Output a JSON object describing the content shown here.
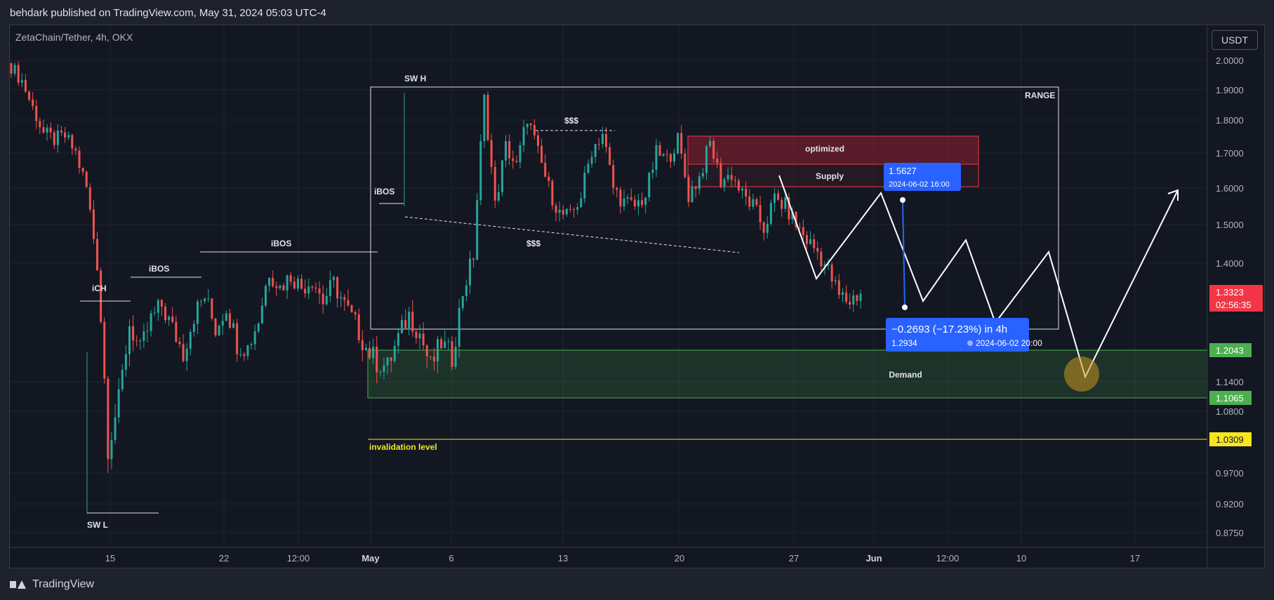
{
  "header": {
    "published": "behdark published on TradingView.com, May 31, 2024 05:03 UTC-4"
  },
  "chart_meta": {
    "symbol": "ZetaChain/Tether, 4h, OKX",
    "currency_button": "USDT"
  },
  "footer": {
    "brand": "TradingView"
  },
  "chart_data": {
    "type": "candlestick",
    "ylim": [
      0.82,
      2.05
    ],
    "y_ticks": [
      "2.0000",
      "1.9000",
      "1.8000",
      "1.7000",
      "1.6000",
      "1.5000",
      "1.4000",
      "1.1400",
      "1.0800",
      "0.9700",
      "0.9200",
      "0.8750"
    ],
    "x_ticks": [
      "15",
      "22",
      "12:00",
      "May",
      "6",
      "13",
      "20",
      "27",
      "Jun",
      "12:00",
      "10",
      "17"
    ],
    "price_labels": [
      {
        "value": "1.3323",
        "sub": "02:56:35",
        "color": "#f23645"
      },
      {
        "value": "1.2043",
        "color": "#4caf50"
      },
      {
        "value": "1.1065",
        "color": "#4caf50"
      },
      {
        "value": "1.0309",
        "color": "#f5e61e"
      }
    ],
    "annotations": {
      "sw_h": "SW H",
      "sw_l": "SW L",
      "ich": "iCH",
      "ibos": "iBOS",
      "liq": "$$$",
      "range": "RANGE",
      "optimized": "optimized",
      "supply": "Supply",
      "demand": "Demand",
      "invalidation": "invalidation level"
    },
    "measure": {
      "start_price": "1.5627",
      "start_time": "2024-06-02 16:00",
      "change": "−0.2693 (−17.23%) in 4h",
      "end_price": "1.2934",
      "end_time": "2024-06-02  20:00"
    },
    "close_path": [
      1.98,
      1.93,
      1.84,
      1.76,
      1.74,
      1.75,
      1.7,
      1.6,
      1.4,
      1.02,
      1.1,
      1.26,
      1.2,
      1.27,
      1.3,
      1.25,
      1.2,
      1.28,
      1.32,
      1.25,
      1.3,
      1.22,
      1.21,
      1.27,
      1.38,
      1.34,
      1.37,
      1.34,
      1.36,
      1.31,
      1.35,
      1.3,
      1.26,
      1.21,
      1.18,
      1.17,
      1.23,
      1.28,
      1.24,
      1.17,
      1.22,
      1.19,
      1.33,
      1.42,
      1.87,
      1.55,
      1.72,
      1.66,
      1.81,
      1.7,
      1.6,
      1.53,
      1.52,
      1.58,
      1.71,
      1.76,
      1.6,
      1.56,
      1.55,
      1.58,
      1.7,
      1.68,
      1.74,
      1.58,
      1.63,
      1.73,
      1.62,
      1.64,
      1.58,
      1.55,
      1.49,
      1.57,
      1.55,
      1.5,
      1.46,
      1.43,
      1.38,
      1.32,
      1.31,
      1.33
    ]
  }
}
